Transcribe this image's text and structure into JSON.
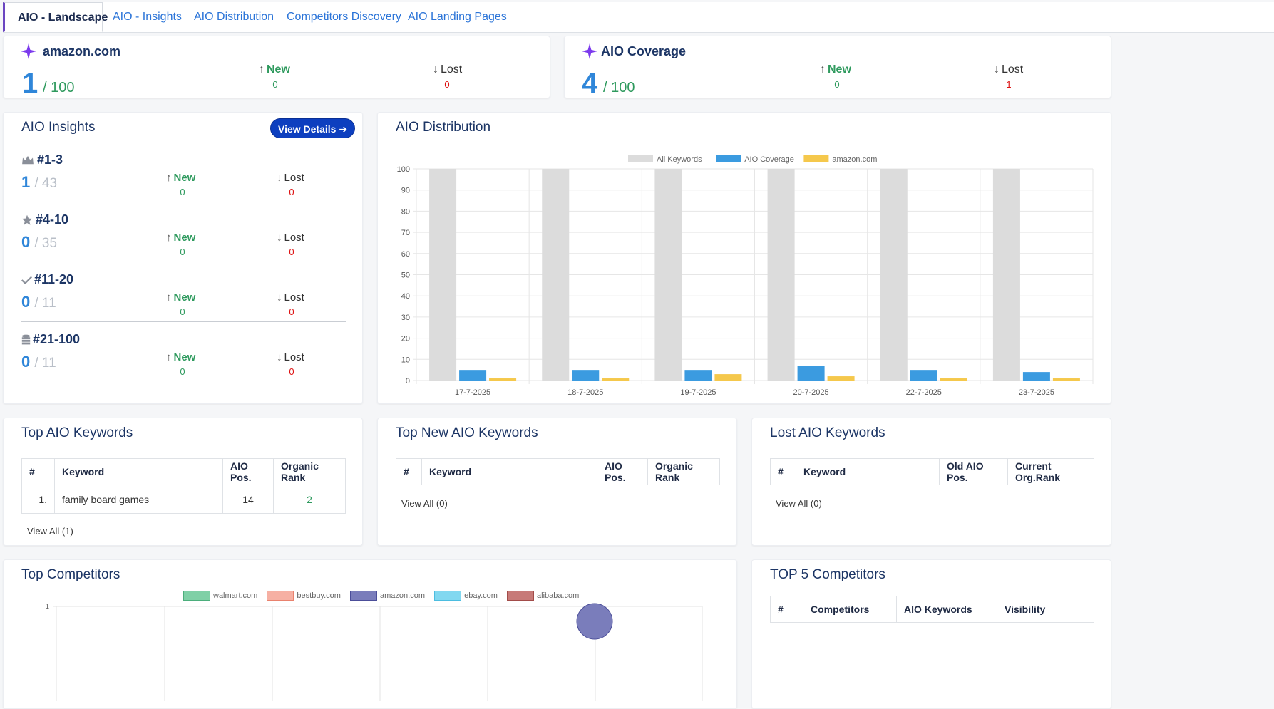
{
  "tabs": [
    {
      "label": "AIO - Landscape",
      "active": true
    },
    {
      "label": "AIO - Insights"
    },
    {
      "label": "AIO Distribution"
    },
    {
      "label": "Competitors Discovery"
    },
    {
      "label": "AIO Landing Pages"
    }
  ],
  "domain_card": {
    "title": "amazon.com",
    "value": "1",
    "total": "/ 100",
    "new_label": "New",
    "new_value": "0",
    "lost_label": "Lost",
    "lost_value": "0"
  },
  "coverage_card": {
    "title": "AIO Coverage",
    "value": "4",
    "total": "/ 100",
    "new_label": "New",
    "new_value": "0",
    "lost_label": "Lost",
    "lost_value": "1"
  },
  "insights": {
    "title": "AIO Insights",
    "button": "View Details",
    "groups": [
      {
        "icon": "crown-icon",
        "label": "#1-3",
        "value": "1",
        "total": "/ 43",
        "new": "0",
        "lost": "0"
      },
      {
        "icon": "star-icon",
        "label": "#4-10",
        "value": "0",
        "total": "/ 35",
        "new": "0",
        "lost": "0"
      },
      {
        "icon": "check-icon",
        "label": "#11-20",
        "value": "0",
        "total": "/ 11",
        "new": "0",
        "lost": "0"
      },
      {
        "icon": "database-icon",
        "label": "#21-100",
        "value": "0",
        "total": "/ 11",
        "new": "0",
        "lost": "0"
      }
    ],
    "new_label": "New",
    "lost_label": "Lost"
  },
  "distribution": {
    "title": "AIO Distribution",
    "chart_data": {
      "type": "bar",
      "categories": [
        "17-7-2025",
        "18-7-2025",
        "19-7-2025",
        "20-7-2025",
        "22-7-2025",
        "23-7-2025"
      ],
      "series": [
        {
          "name": "All Keywords",
          "values": [
            100,
            100,
            100,
            100,
            100,
            100
          ],
          "color": "#dcdcdc"
        },
        {
          "name": "AIO Coverage",
          "values": [
            5,
            5,
            5,
            7,
            5,
            4
          ],
          "color": "#3b9be0"
        },
        {
          "name": "amazon.com",
          "values": [
            1,
            1,
            3,
            2,
            1,
            1
          ],
          "color": "#f5c84c"
        }
      ],
      "ylim": [
        0,
        100
      ],
      "yticks": [
        0,
        10,
        20,
        30,
        40,
        50,
        60,
        70,
        80,
        90,
        100
      ],
      "grid": true,
      "legend": "top-center"
    }
  },
  "top_keywords": {
    "title": "Top AIO Keywords",
    "headers": [
      "#",
      "Keyword",
      "AIO Pos.",
      "Organic Rank"
    ],
    "rows": [
      [
        "1.",
        "family board games",
        "14",
        "2"
      ]
    ],
    "view_all": "View All (1)"
  },
  "new_keywords": {
    "title": "Top New AIO Keywords",
    "headers": [
      "#",
      "Keyword",
      "AIO Pos.",
      "Organic Rank"
    ],
    "view_all": "View All (0)"
  },
  "lost_keywords": {
    "title": "Lost AIO Keywords",
    "headers": [
      "#",
      "Keyword",
      "Old AIO Pos.",
      "Current Org.Rank"
    ],
    "view_all": "View All (0)"
  },
  "competitors": {
    "title": "Top Competitors",
    "legend": [
      {
        "name": "walmart.com",
        "color": "#7fd0a6"
      },
      {
        "name": "bestbuy.com",
        "color": "#f6b0a3"
      },
      {
        "name": "amazon.com",
        "color": "#7a7dbb"
      },
      {
        "name": "ebay.com",
        "color": "#82d8f0"
      },
      {
        "name": "alibaba.com",
        "color": "#c77a78"
      }
    ],
    "y_top": "1"
  },
  "top5": {
    "title": "TOP 5 Competitors",
    "headers": [
      "#",
      "Competitors",
      "AIO Keywords",
      "Visibility"
    ]
  }
}
